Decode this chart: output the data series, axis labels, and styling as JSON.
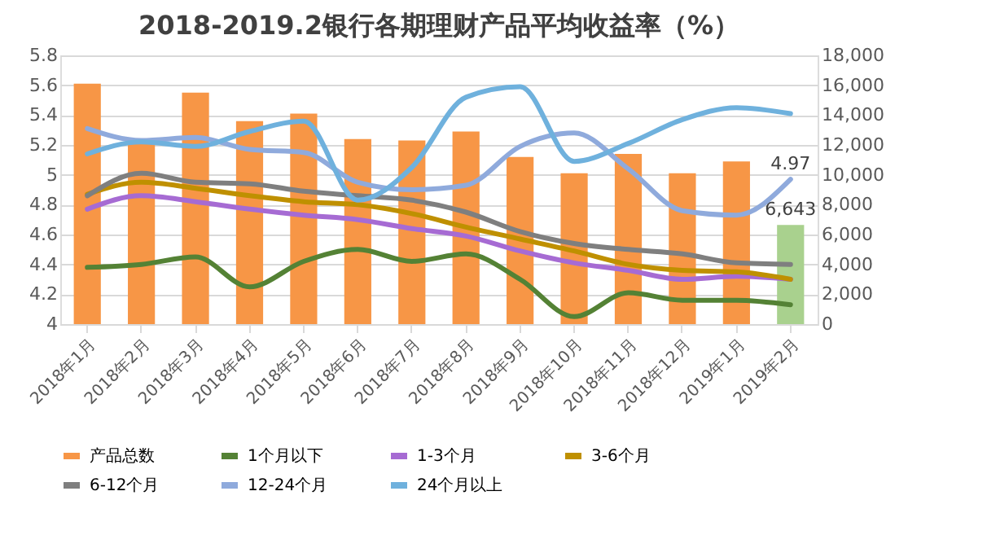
{
  "chart_data": {
    "type": "bar",
    "title": "2018-2019.2银行各期理财产品平均收益率（%）",
    "categories": [
      "2018年1月",
      "2018年2月",
      "2018年3月",
      "2018年4月",
      "2018年5月",
      "2018年6月",
      "2018年7月",
      "2018年8月",
      "2018年9月",
      "2018年10月",
      "2018年11月",
      "2018年12月",
      "2019年1月",
      "2019年2月"
    ],
    "series": [
      {
        "name": "产品总数",
        "axis": "y2",
        "color": "#f79646",
        "colors": [
          "#f79646",
          "#f79646",
          "#f79646",
          "#f79646",
          "#f79646",
          "#f79646",
          "#f79646",
          "#f79646",
          "#f79646",
          "#f79646",
          "#f79646",
          "#f79646",
          "#f79646",
          "#a9d18e"
        ],
        "values": [
          16100,
          12200,
          15500,
          13600,
          14100,
          12400,
          12300,
          12900,
          11200,
          10100,
          11400,
          10100,
          10900,
          6643
        ],
        "value_labels": [
          null,
          null,
          null,
          null,
          null,
          null,
          null,
          null,
          null,
          null,
          null,
          null,
          null,
          "6,643"
        ]
      },
      {
        "name": "1个月以下",
        "type": "line",
        "color": "#548235",
        "values": [
          4.38,
          4.4,
          4.45,
          4.25,
          4.42,
          4.5,
          4.42,
          4.47,
          4.3,
          4.05,
          4.21,
          4.16,
          4.16,
          4.13
        ]
      },
      {
        "name": "1-3个月",
        "type": "line",
        "color": "#a66bd3",
        "values": [
          4.77,
          4.86,
          4.82,
          4.77,
          4.73,
          4.7,
          4.64,
          4.59,
          4.49,
          4.41,
          4.36,
          4.3,
          4.32,
          4.3
        ]
      },
      {
        "name": "3-6个月",
        "type": "line",
        "color": "#bf9000",
        "values": [
          4.87,
          4.95,
          4.91,
          4.86,
          4.82,
          4.8,
          4.74,
          4.65,
          4.57,
          4.49,
          4.4,
          4.36,
          4.35,
          4.3
        ]
      },
      {
        "name": "6-12个月",
        "type": "line",
        "color": "#7f7f7f",
        "values": [
          4.86,
          5.01,
          4.95,
          4.94,
          4.89,
          4.86,
          4.83,
          4.75,
          4.62,
          4.54,
          4.5,
          4.47,
          4.41,
          4.4
        ]
      },
      {
        "name": "12-24个月",
        "type": "line",
        "color": "#8faadc",
        "values": [
          5.31,
          5.23,
          5.25,
          5.17,
          5.15,
          4.95,
          4.9,
          4.93,
          5.19,
          5.28,
          5.04,
          4.76,
          4.73,
          4.97
        ],
        "value_labels": [
          null,
          null,
          null,
          null,
          null,
          null,
          null,
          null,
          null,
          null,
          null,
          null,
          null,
          "4.97"
        ]
      },
      {
        "name": "24个月以上",
        "type": "line",
        "color": "#6fb1dd",
        "values": [
          5.14,
          5.22,
          5.19,
          5.29,
          5.36,
          4.83,
          5.05,
          5.52,
          5.59,
          5.09,
          5.21,
          5.37,
          5.45,
          5.41
        ]
      }
    ],
    "ylim": [
      4,
      5.8
    ],
    "yticks": [
      4,
      4.2,
      4.4,
      4.6,
      4.8,
      5,
      5.2,
      5.4,
      5.6,
      5.8
    ],
    "y2lim": [
      0,
      18000
    ],
    "y2ticks": [
      {
        "value": 0,
        "label": "0"
      },
      {
        "value": 2000,
        "label": "2,000"
      },
      {
        "value": 4000,
        "label": "4,000"
      },
      {
        "value": 6000,
        "label": "6,000"
      },
      {
        "value": 8000,
        "label": "8,000"
      },
      {
        "value": 10000,
        "label": "10,000"
      },
      {
        "value": 12000,
        "label": "12,000"
      },
      {
        "value": 14000,
        "label": "14,000"
      },
      {
        "value": 16000,
        "label": "16,000"
      },
      {
        "value": 18000,
        "label": "18,000"
      }
    ],
    "grid": "y",
    "legend": "bottom"
  }
}
